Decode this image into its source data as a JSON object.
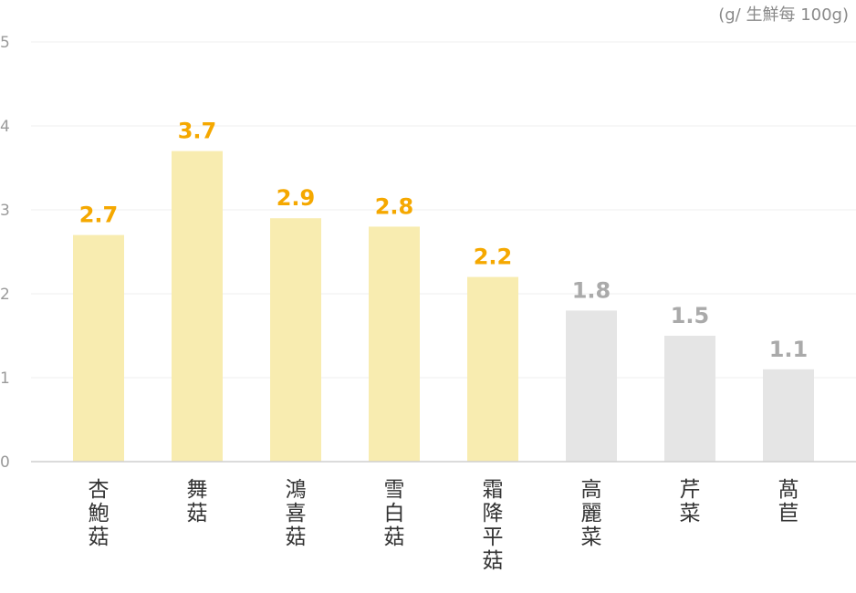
{
  "chart_data": {
    "type": "bar",
    "unit_label": "(g/ 生鮮每 100g)",
    "categories": [
      "杏鮑菇",
      "舞菇",
      "鴻喜菇",
      "雪白菇",
      "霜降平菇",
      "高麗菜",
      "芹菜",
      "萵苣"
    ],
    "values": [
      2.7,
      3.7,
      2.9,
      2.8,
      2.2,
      1.8,
      1.5,
      1.1
    ],
    "value_labels": [
      "2.7",
      "3.7",
      "2.9",
      "2.8",
      "2.2",
      "1.8",
      "1.5",
      "1.1"
    ],
    "highlight": [
      true,
      true,
      true,
      true,
      true,
      false,
      false,
      false
    ],
    "ylim": [
      0,
      5
    ],
    "yticks": [
      "0",
      "1",
      "2",
      "3",
      "4",
      "5"
    ],
    "grid": true,
    "colors": {
      "highlight_bar": "#f8ecb0",
      "highlight_label": "#f5a800",
      "normal_bar": "#e5e5e5",
      "normal_label": "#aaaaaa"
    }
  }
}
